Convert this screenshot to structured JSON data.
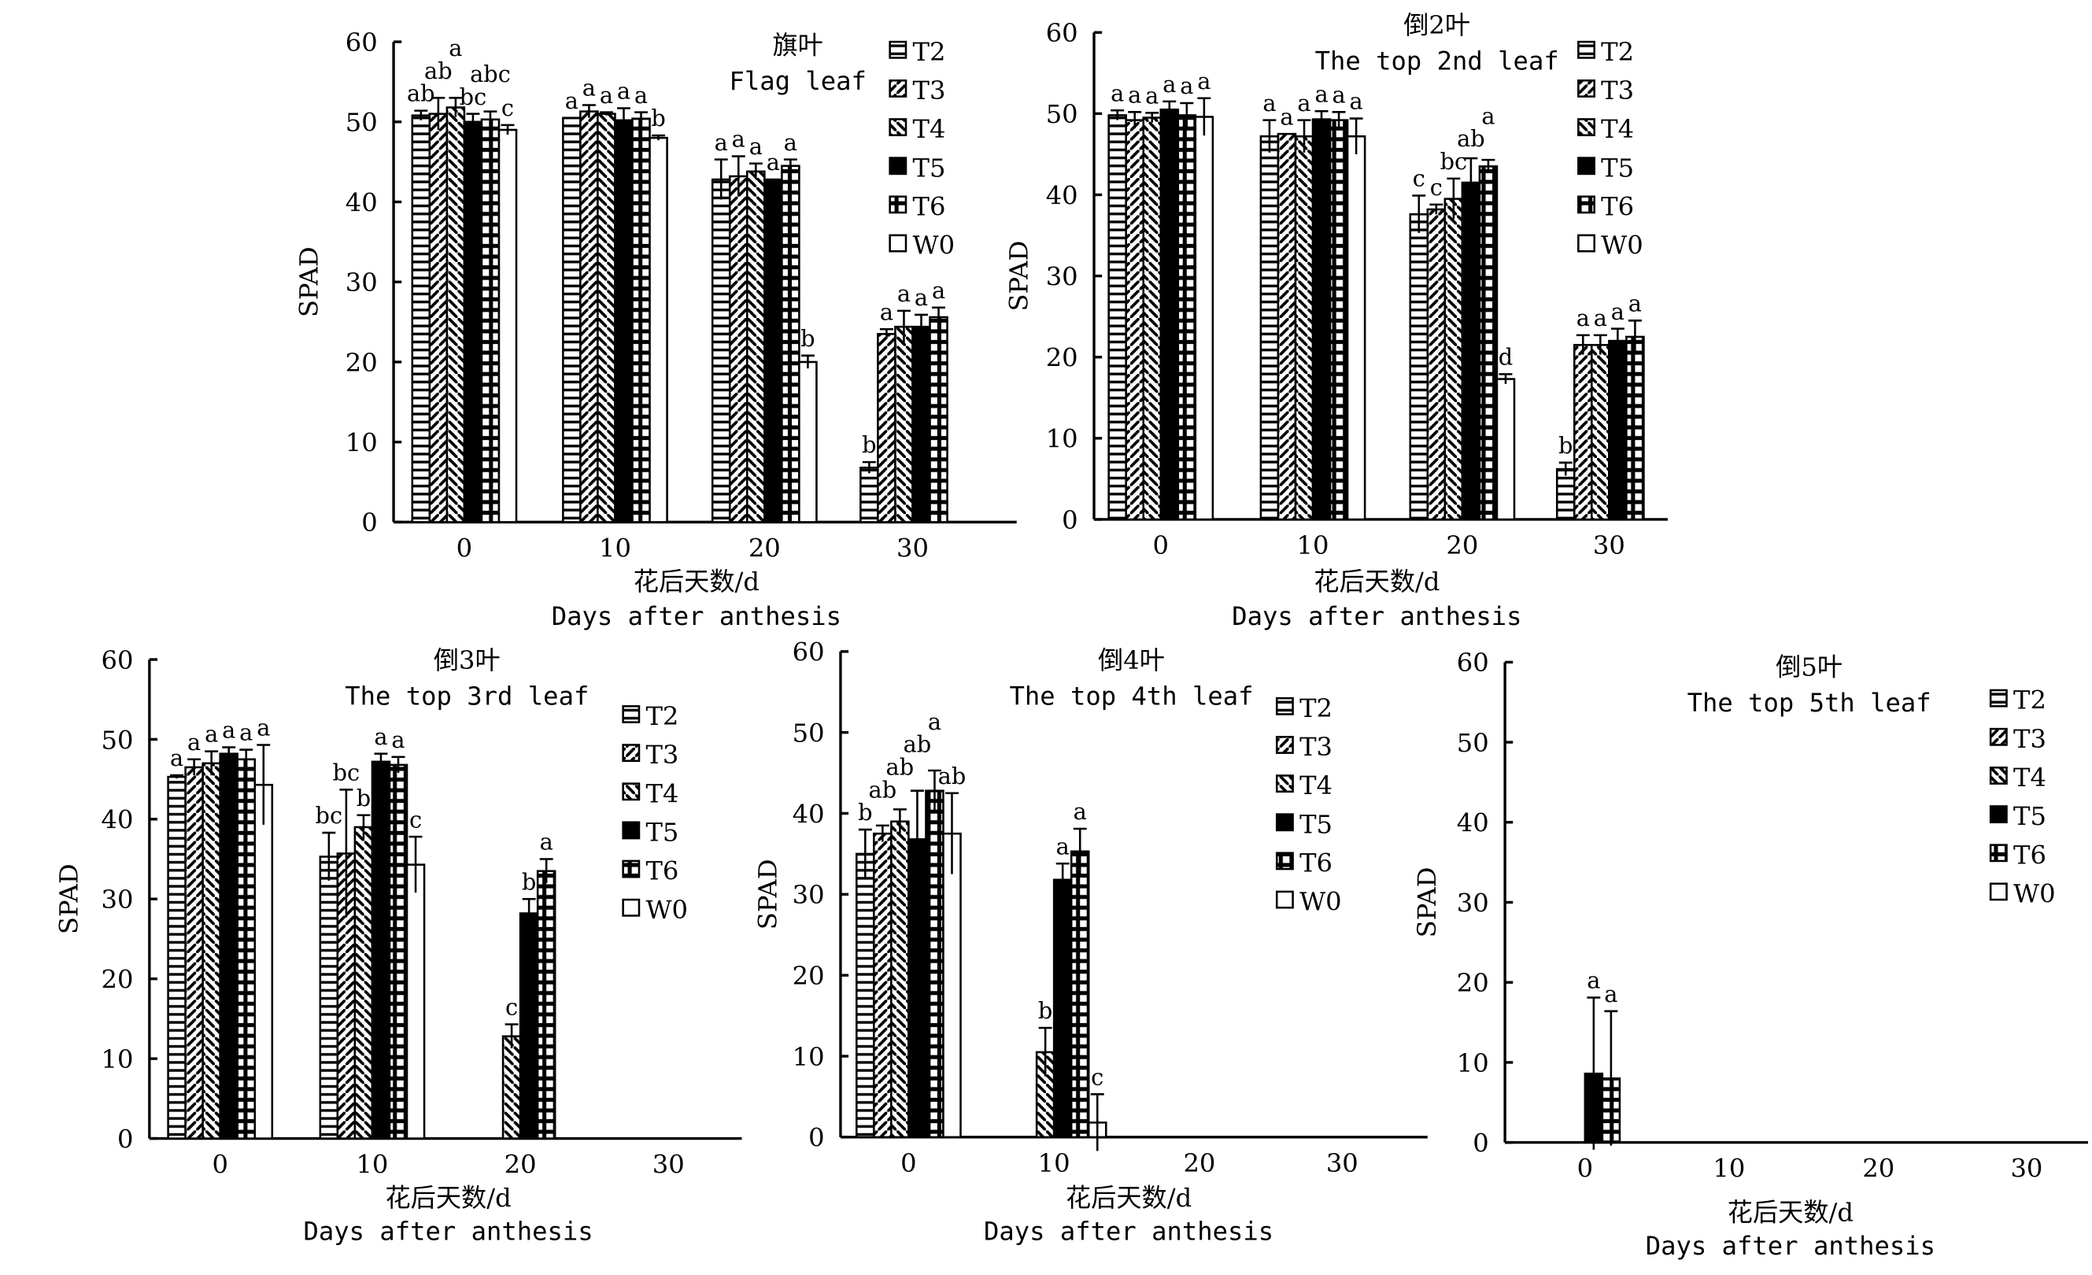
{
  "chart_data": [
    {
      "type": "bar",
      "title": "旗叶",
      "subtitle": "Flag leaf",
      "ylabel": "SPAD",
      "xlabel": "花后天数/d",
      "xlabel_en": "Days after anthesis",
      "ylim": [
        0,
        60
      ],
      "yticks": [
        0,
        10,
        20,
        30,
        40,
        50,
        60
      ],
      "categories": [
        "0",
        "10",
        "20",
        "30"
      ],
      "legend_position": "top-right",
      "series": [
        {
          "name": "T2",
          "values": [
            50.8,
            50.5,
            42.8,
            6.8
          ],
          "errors": [
            0.6,
            0,
            2.5,
            0.7
          ],
          "letters": [
            "ab",
            "a",
            "a",
            "b"
          ]
        },
        {
          "name": "T3",
          "values": [
            51.0,
            51.3,
            43.2,
            23.5
          ],
          "errors": [
            2.0,
            0.8,
            2.5,
            0.6
          ],
          "letters": [
            "ab",
            "a",
            "a",
            "a"
          ]
        },
        {
          "name": "T4",
          "values": [
            51.8,
            51.0,
            43.8,
            24.4
          ],
          "errors": [
            1.2,
            0.2,
            1.0,
            2.0
          ],
          "letters": [
            "a",
            "a",
            "a",
            "a"
          ]
        },
        {
          "name": "T5",
          "values": [
            50.0,
            50.2,
            42.8,
            24.4
          ],
          "errors": [
            1.0,
            1.5,
            0,
            1.5
          ],
          "letters": [
            "bc",
            "a",
            "a",
            "a"
          ]
        },
        {
          "name": "T6",
          "values": [
            50.3,
            50.4,
            44.5,
            25.6
          ],
          "errors": [
            1.0,
            0.8,
            0.8,
            1.2
          ],
          "letters": [
            "abc",
            "a",
            "a",
            "a"
          ]
        },
        {
          "name": "W0",
          "values": [
            49.0,
            48.0,
            20.0,
            null
          ],
          "errors": [
            0.6,
            0.3,
            0.8,
            null
          ],
          "letters": [
            "c",
            "b",
            "b",
            ""
          ]
        }
      ]
    },
    {
      "type": "bar",
      "title": "倒2叶",
      "subtitle": "The top 2nd leaf",
      "ylabel": "SPAD",
      "xlabel": "花后天数/d",
      "xlabel_en": "Days after anthesis",
      "ylim": [
        0,
        60
      ],
      "yticks": [
        0,
        10,
        20,
        30,
        40,
        50,
        60
      ],
      "categories": [
        "0",
        "10",
        "20",
        "30"
      ],
      "legend_position": "top-right",
      "series": [
        {
          "name": "T2",
          "values": [
            49.8,
            47.2,
            37.6,
            6.2
          ],
          "errors": [
            0.6,
            2.0,
            2.3,
            0.8
          ],
          "letters": [
            "a",
            "a",
            "c",
            "b"
          ]
        },
        {
          "name": "T3",
          "values": [
            49.2,
            47.5,
            38.2,
            21.5
          ],
          "errors": [
            1.0,
            0,
            0.6,
            1.2
          ],
          "letters": [
            "a",
            "a",
            "c",
            "a"
          ]
        },
        {
          "name": "T4",
          "values": [
            49.5,
            47.2,
            39.5,
            21.5
          ],
          "errors": [
            0.6,
            2.0,
            2.5,
            1.2
          ],
          "letters": [
            "a",
            "a",
            "bc",
            "a"
          ]
        },
        {
          "name": "T5",
          "values": [
            50.5,
            49.3,
            41.5,
            22.0
          ],
          "errors": [
            1.0,
            1.0,
            3.0,
            1.5
          ],
          "letters": [
            "a",
            "a",
            "ab",
            "a"
          ]
        },
        {
          "name": "T6",
          "values": [
            49.8,
            49.2,
            43.5,
            22.5
          ],
          "errors": [
            1.5,
            1.0,
            0.8,
            2.0
          ],
          "letters": [
            "a",
            "a",
            "a",
            "a"
          ]
        },
        {
          "name": "W0",
          "values": [
            49.6,
            47.2,
            17.3,
            null
          ],
          "errors": [
            2.3,
            2.2,
            0.6,
            null
          ],
          "letters": [
            "a",
            "a",
            "d",
            ""
          ]
        }
      ]
    },
    {
      "type": "bar",
      "title": "倒3叶",
      "subtitle": "The top 3rd leaf",
      "ylabel": "SPAD",
      "xlabel": "花后天数/d",
      "xlabel_en": "Days after anthesis",
      "ylim": [
        0,
        60
      ],
      "yticks": [
        0,
        10,
        20,
        30,
        40,
        50,
        60
      ],
      "categories": [
        "0",
        "10",
        "20",
        "30"
      ],
      "legend_position": "right",
      "series": [
        {
          "name": "T2",
          "values": [
            45.3,
            35.3,
            null,
            null
          ],
          "errors": [
            0.2,
            3.0,
            null,
            null
          ],
          "letters": [
            "a",
            "bc",
            "",
            ""
          ]
        },
        {
          "name": "T3",
          "values": [
            46.5,
            35.7,
            null,
            null
          ],
          "errors": [
            1.0,
            8.0,
            null,
            null
          ],
          "letters": [
            "a",
            "bc",
            "",
            ""
          ]
        },
        {
          "name": "T4",
          "values": [
            47.0,
            39.0,
            12.8,
            null
          ],
          "errors": [
            1.5,
            1.5,
            1.5,
            null
          ],
          "letters": [
            "a",
            "b",
            "c",
            ""
          ]
        },
        {
          "name": "T5",
          "values": [
            48.2,
            47.2,
            28.2,
            null
          ],
          "errors": [
            0.8,
            1.0,
            1.8,
            null
          ],
          "letters": [
            "a",
            "a",
            "b",
            ""
          ]
        },
        {
          "name": "T6",
          "values": [
            47.5,
            46.8,
            33.5,
            null
          ],
          "errors": [
            1.2,
            1.0,
            1.5,
            null
          ],
          "letters": [
            "a",
            "a",
            "a",
            ""
          ]
        },
        {
          "name": "W0",
          "values": [
            44.3,
            34.3,
            null,
            null
          ],
          "errors": [
            5.0,
            3.5,
            null,
            null
          ],
          "letters": [
            "a",
            "c",
            "",
            ""
          ]
        }
      ]
    },
    {
      "type": "bar",
      "title": "倒4叶",
      "subtitle": "The top 4th leaf",
      "ylabel": "SPAD",
      "xlabel": "花后天数/d",
      "xlabel_en": "Days after anthesis",
      "ylim": [
        0,
        60
      ],
      "yticks": [
        0,
        10,
        20,
        30,
        40,
        50,
        60
      ],
      "categories": [
        "0",
        "10",
        "20",
        "30"
      ],
      "legend_position": "right",
      "series": [
        {
          "name": "T2",
          "values": [
            35.0,
            null,
            null,
            null
          ],
          "errors": [
            3.0,
            null,
            null,
            null
          ],
          "letters": [
            "b",
            "",
            "",
            ""
          ]
        },
        {
          "name": "T3",
          "values": [
            37.5,
            null,
            null,
            null
          ],
          "errors": [
            1.0,
            null,
            null,
            null
          ],
          "letters": [
            "ab",
            "",
            "",
            ""
          ]
        },
        {
          "name": "T4",
          "values": [
            39.0,
            10.5,
            null,
            null
          ],
          "errors": [
            1.5,
            3.0,
            null,
            null
          ],
          "letters": [
            "ab",
            "b",
            "",
            ""
          ]
        },
        {
          "name": "T5",
          "values": [
            36.8,
            31.8,
            null,
            null
          ],
          "errors": [
            6.0,
            2.0,
            null,
            null
          ],
          "letters": [
            "ab",
            "a",
            "",
            ""
          ]
        },
        {
          "name": "T6",
          "values": [
            42.8,
            35.3,
            null,
            null
          ],
          "errors": [
            2.5,
            2.8,
            null,
            null
          ],
          "letters": [
            "a",
            "a",
            "",
            ""
          ]
        },
        {
          "name": "W0",
          "values": [
            37.5,
            1.8,
            null,
            null
          ],
          "errors": [
            5.0,
            3.5,
            null,
            null
          ],
          "letters": [
            "ab",
            "c",
            "",
            ""
          ]
        }
      ]
    },
    {
      "type": "bar",
      "title": "倒5叶",
      "subtitle": "The top 5th leaf",
      "ylabel": "SPAD",
      "xlabel": "花后天数/d",
      "xlabel_en": "Days after anthesis",
      "ylim": [
        0,
        60
      ],
      "yticks": [
        0,
        10,
        20,
        30,
        40,
        50,
        60
      ],
      "categories": [
        "0",
        "10",
        "20",
        "30"
      ],
      "legend_position": "right",
      "series": [
        {
          "name": "T2",
          "values": [
            null,
            null,
            null,
            null
          ],
          "errors": [
            null,
            null,
            null,
            null
          ],
          "letters": [
            "",
            "",
            "",
            ""
          ]
        },
        {
          "name": "T3",
          "values": [
            null,
            null,
            null,
            null
          ],
          "errors": [
            null,
            null,
            null,
            null
          ],
          "letters": [
            "",
            "",
            "",
            ""
          ]
        },
        {
          "name": "T4",
          "values": [
            null,
            null,
            null,
            null
          ],
          "errors": [
            null,
            null,
            null,
            null
          ],
          "letters": [
            "",
            "",
            "",
            ""
          ]
        },
        {
          "name": "T5",
          "values": [
            8.6,
            null,
            null,
            null
          ],
          "errors": [
            9.5,
            null,
            null,
            null
          ],
          "letters": [
            "a",
            "",
            "",
            ""
          ]
        },
        {
          "name": "T6",
          "values": [
            8.0,
            null,
            null,
            null
          ],
          "errors": [
            8.4,
            null,
            null,
            null
          ],
          "letters": [
            "a",
            "",
            "",
            ""
          ]
        },
        {
          "name": "W0",
          "values": [
            null,
            null,
            null,
            null
          ],
          "errors": [
            null,
            null,
            null,
            null
          ],
          "letters": [
            "",
            "",
            "",
            ""
          ]
        }
      ]
    }
  ],
  "series_fills": {
    "T2": "horizontal-lines",
    "T3": "chevron-hatch",
    "T4": "back-diagonal-hatch",
    "T5": "#000000",
    "T6": "brick-grid",
    "W0": "#ffffff"
  }
}
